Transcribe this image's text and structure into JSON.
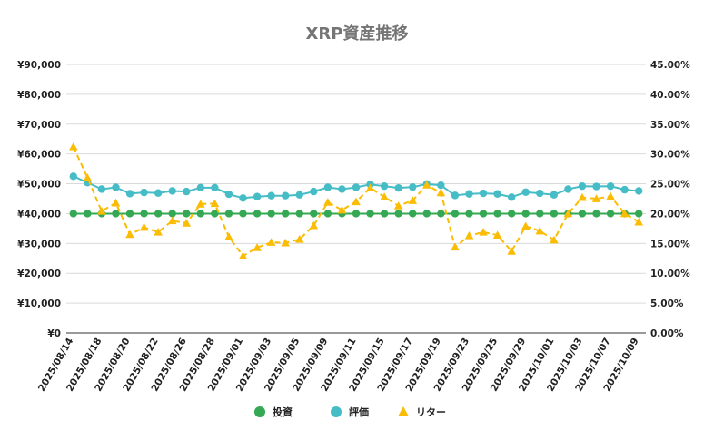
{
  "chart_data": {
    "type": "line",
    "title": "XRP資産推移",
    "x": [
      "2025/08/14",
      "2025/08/15",
      "2025/08/18",
      "2025/08/19",
      "2025/08/20",
      "2025/08/21",
      "2025/08/22",
      "2025/08/25",
      "2025/08/26",
      "2025/08/27",
      "2025/08/28",
      "2025/08/29",
      "2025/09/01",
      "2025/09/02",
      "2025/09/03",
      "2025/09/04",
      "2025/09/05",
      "2025/09/08",
      "2025/09/09",
      "2025/09/10",
      "2025/09/11",
      "2025/09/12",
      "2025/09/15",
      "2025/09/16",
      "2025/09/17",
      "2025/09/18",
      "2025/09/19",
      "2025/09/22",
      "2025/09/23",
      "2025/09/24",
      "2025/09/25",
      "2025/09/26",
      "2025/09/29",
      "2025/09/30",
      "2025/10/01",
      "2025/10/02",
      "2025/10/03",
      "2025/10/06",
      "2025/10/07",
      "2025/10/08",
      "2025/10/09"
    ],
    "x_tick_labels": [
      "2025/08/14",
      "2025/08/18",
      "2025/08/20",
      "2025/08/22",
      "2025/08/26",
      "2025/08/28",
      "2025/09/01",
      "2025/09/03",
      "2025/09/05",
      "2025/09/09",
      "2025/09/11",
      "2025/09/15",
      "2025/09/17",
      "2025/09/19",
      "2025/09/23",
      "2025/09/25",
      "2025/09/29",
      "2025/10/01",
      "2025/10/03",
      "2025/10/07",
      "2025/10/09"
    ],
    "y_left": {
      "min": 0,
      "max": 90000,
      "tick_labels": [
        "¥0",
        "¥10,000",
        "¥20,000",
        "¥30,000",
        "¥40,000",
        "¥50,000",
        "¥60,000",
        "¥70,000",
        "¥80,000",
        "¥90,000"
      ]
    },
    "y_right": {
      "min": 0,
      "max": 45,
      "tick_labels": [
        "0.00%",
        "5.00%",
        "10.00%",
        "15.00%",
        "20.00%",
        "25.00%",
        "30.00%",
        "35.00%",
        "40.00%",
        "45.00%"
      ]
    },
    "grid": "horizontal",
    "legend_position": "bottom-center",
    "series": [
      {
        "name": "投資",
        "axis": "left",
        "marker": "circle",
        "line": "solid",
        "color": "#34A853",
        "values": [
          40000,
          40000,
          40000,
          40000,
          40000,
          40000,
          40000,
          40000,
          40000,
          40000,
          40000,
          40000,
          40000,
          40000,
          40000,
          40000,
          40000,
          40000,
          40000,
          40000,
          40000,
          40000,
          40000,
          40000,
          40000,
          40000,
          40000,
          40000,
          40000,
          40000,
          40000,
          40000,
          40000,
          40000,
          40000,
          40000,
          40000,
          40000,
          40000,
          40000,
          40000
        ]
      },
      {
        "name": "評価",
        "axis": "left",
        "marker": "circle",
        "line": "solid",
        "color": "#46BDC6",
        "values": [
          52500,
          50400,
          48200,
          48800,
          46700,
          47100,
          46900,
          47600,
          47400,
          48700,
          48700,
          46500,
          45200,
          45700,
          46000,
          46000,
          46300,
          47400,
          48800,
          48200,
          48800,
          49800,
          49200,
          48600,
          48900,
          49900,
          49500,
          46100,
          46600,
          46800,
          46600,
          45500,
          47200,
          46800,
          46300,
          48200,
          49200,
          49100,
          49200,
          48000,
          47600
        ]
      },
      {
        "name": "リター",
        "axis": "right",
        "marker": "triangle",
        "line": "dashed",
        "color": "#FBBC04",
        "values": [
          31.2,
          26.0,
          20.4,
          21.8,
          16.5,
          17.7,
          16.9,
          18.8,
          18.4,
          21.6,
          21.7,
          16.1,
          12.9,
          14.3,
          15.2,
          15.1,
          15.7,
          18.0,
          21.9,
          20.6,
          22.0,
          24.3,
          22.8,
          21.3,
          22.2,
          24.8,
          23.5,
          14.4,
          16.3,
          16.9,
          16.4,
          13.7,
          17.9,
          17.1,
          15.6,
          20.0,
          22.7,
          22.5,
          22.9,
          20.0,
          18.6
        ]
      }
    ]
  }
}
